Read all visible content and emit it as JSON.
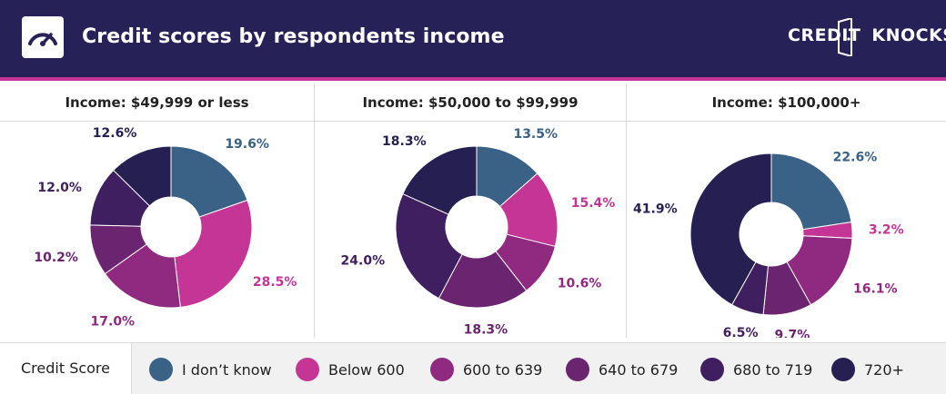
{
  "header": {
    "title": "Credit scores by respondents income",
    "brand_left": "CREDIT",
    "brand_right": "KNOCKS",
    "icon": "speedometer-icon"
  },
  "colors": {
    "header_bg": "#262156",
    "accent": "#c43596",
    "categories": [
      "#3a6186",
      "#c43596",
      "#8f2a80",
      "#6a2470",
      "#3f1f5f",
      "#251f52"
    ]
  },
  "legend": {
    "title": "Credit Score",
    "items": [
      "I don’t know",
      "Below 600",
      "600 to 639",
      "640 to 679",
      "680 to 719",
      "720+"
    ]
  },
  "chart_data": [
    {
      "type": "pie",
      "title": "Income: $49,999 or less",
      "categories": [
        "I don’t know",
        "Below 600",
        "600 to 639",
        "640 to 679",
        "680 to 719",
        "720+"
      ],
      "values": [
        19.6,
        28.5,
        17.0,
        10.2,
        12.0,
        12.6
      ],
      "labels": [
        "19.6%",
        "28.5%",
        "17.0%",
        "10.2%",
        "12.0%",
        "12.6%"
      ]
    },
    {
      "type": "pie",
      "title": "Income: $50,000 to $99,999",
      "categories": [
        "I don’t know",
        "Below 600",
        "600 to 639",
        "640 to 679",
        "680 to 719",
        "720+"
      ],
      "values": [
        13.5,
        15.4,
        10.6,
        18.3,
        24.0,
        18.3
      ],
      "labels": [
        "13.5%",
        "15.4%",
        "10.6%",
        "18.3%",
        "24.0%",
        "18.3%"
      ]
    },
    {
      "type": "pie",
      "title": "Income: $100,000+",
      "categories": [
        "I don’t know",
        "Below 600",
        "600 to 639",
        "640 to 679",
        "680 to 719",
        "720+"
      ],
      "values": [
        22.6,
        3.2,
        16.1,
        9.7,
        6.5,
        41.9
      ],
      "labels": [
        "22.6%",
        "3.2%",
        "16.1%",
        "9.7%",
        "6.5%",
        "41.9%"
      ]
    }
  ]
}
